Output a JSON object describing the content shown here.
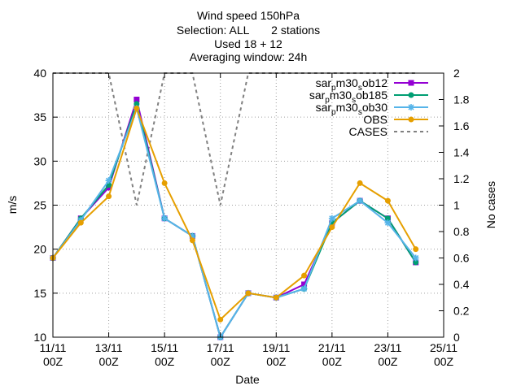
{
  "chart_data": {
    "type": "line",
    "title": [
      "Wind speed 150hPa",
      "Selection: ALL       2 stations",
      "Used 18 + 12",
      "Averaging window: 24h"
    ],
    "xlabel": "Date",
    "ylabel": "m/s",
    "y2label": "No cases",
    "xlim": [
      0,
      28
    ],
    "ylim": [
      10,
      40
    ],
    "y2lim": [
      0,
      2
    ],
    "grid": true,
    "legend_position": "top-right",
    "x_ticks": [
      {
        "value": 0,
        "l1": "11/11",
        "l2": "00Z"
      },
      {
        "value": 4,
        "l1": "13/11",
        "l2": "00Z"
      },
      {
        "value": 8,
        "l1": "15/11",
        "l2": "00Z"
      },
      {
        "value": 12,
        "l1": "17/11",
        "l2": "00Z"
      },
      {
        "value": 16,
        "l1": "19/11",
        "l2": "00Z"
      },
      {
        "value": 20,
        "l1": "21/11",
        "l2": "00Z"
      },
      {
        "value": 24,
        "l1": "23/11",
        "l2": "00Z"
      },
      {
        "value": 28,
        "l1": "25/11",
        "l2": "00Z"
      }
    ],
    "y_ticks": [
      "10",
      "15",
      "20",
      "25",
      "30",
      "35",
      "40"
    ],
    "y2_ticks": [
      "0",
      "0.2",
      "0.4",
      "0.6",
      "0.8",
      "1",
      "1.2",
      "1.4",
      "1.6",
      "1.8",
      "2"
    ],
    "series": [
      {
        "name": "sar_pm30_sob12",
        "legend_parts": [
          "sar",
          "p",
          "m30",
          "s",
          "ob12"
        ],
        "color": "#9400d3",
        "marker": "square",
        "x": [
          0,
          2,
          4,
          6,
          8,
          10,
          12,
          14,
          16,
          18,
          20,
          22,
          24,
          26
        ],
        "y": [
          19,
          23.5,
          27,
          37,
          23.5,
          21.5,
          10,
          15,
          14.5,
          16,
          23,
          25.5,
          23.5,
          18.5
        ]
      },
      {
        "name": "sar_pm30_sob185",
        "legend_parts": [
          "sar",
          "p",
          "m30",
          "s",
          "ob185"
        ],
        "color": "#009e73",
        "marker": "circle",
        "x": [
          0,
          2,
          4,
          6,
          8,
          10,
          12,
          14,
          16,
          18,
          20,
          22,
          24,
          26
        ],
        "y": [
          19,
          23.5,
          27.3,
          36.5,
          23.5,
          21.5,
          10,
          15,
          14.5,
          15.5,
          23,
          25.5,
          23.5,
          18.5
        ]
      },
      {
        "name": "sar_pm30_sob30",
        "legend_parts": [
          "sar",
          "p",
          "m30",
          "s",
          "ob30"
        ],
        "color": "#56b4e9",
        "marker": "star",
        "x": [
          0,
          2,
          4,
          6,
          8,
          10,
          12,
          14,
          16,
          18,
          20,
          22,
          24,
          26
        ],
        "y": [
          19,
          23.3,
          27.8,
          36,
          23.5,
          21.5,
          10,
          15,
          14.5,
          15.5,
          23.5,
          25.5,
          23,
          19
        ]
      },
      {
        "name": "OBS",
        "legend_parts": [
          "OBS"
        ],
        "color": "#e69f00",
        "marker": "circle",
        "x": [
          0,
          2,
          4,
          6,
          8,
          10,
          12,
          14,
          16,
          18,
          20,
          22,
          24,
          26
        ],
        "y": [
          19,
          23,
          26,
          36,
          27.5,
          21,
          12,
          15,
          14.5,
          17,
          22.5,
          27.5,
          25.5,
          20
        ]
      },
      {
        "name": "CASES",
        "legend_parts": [
          "CASES"
        ],
        "color": "#808080",
        "dashed": true,
        "axis": "y2",
        "x": [
          0,
          4,
          6,
          8,
          10,
          12,
          14,
          16,
          18,
          20,
          22,
          24,
          26
        ],
        "y": [
          2,
          2,
          1,
          2,
          2,
          1,
          2,
          2,
          2,
          2,
          2,
          2,
          2
        ]
      }
    ]
  }
}
